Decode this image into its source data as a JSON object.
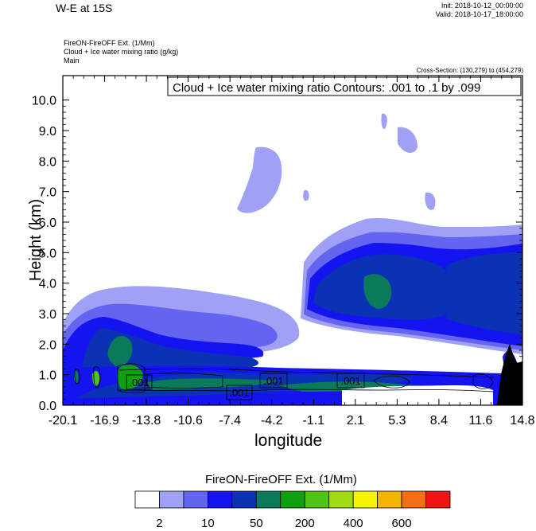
{
  "header": {
    "title": "W-E at 15S",
    "init": "Init: 2018-10-12_00:00:00",
    "valid": "Valid: 2018-10-17_18:00:00",
    "field1": "FireON-FireOFF Ext.   (1/Mm)",
    "field2": "Cloud + Ice water mixing ratio   (g/kg)",
    "field3": "Main",
    "cross_section": "Cross-Section: (130,279) to (454,279)"
  },
  "chart_data": {
    "type": "heatmap",
    "title": "W-E at 15S",
    "xlabel": "longitude",
    "ylabel": "Height (km)",
    "contour_label": "Cloud + Ice water mixing ratio Contours: .001 to .1 by .099",
    "x_ticks": [
      "-20.1",
      "-16.9",
      "-13.8",
      "-10.6",
      "-7.4",
      "-4.2",
      "-1.1",
      "2.1",
      "5.3",
      "8.4",
      "11.6",
      "14.8"
    ],
    "y_ticks": [
      "0.0",
      "1.0",
      "2.0",
      "3.0",
      "4.0",
      "5.0",
      "6.0",
      "7.0",
      "8.0",
      "9.0",
      "10.0"
    ],
    "xlim": [
      -20.1,
      14.8
    ],
    "ylim": [
      0,
      10.8
    ],
    "contour_labels": [
      ".001",
      ".001",
      ".001",
      ".001"
    ],
    "colorbar": {
      "title": "FireON-FireOFF Ext.  (1/Mm)",
      "colors": [
        "#ffffff",
        "#a0a0f5",
        "#6464f0",
        "#1414f0",
        "#0b32b4",
        "#0b7a5a",
        "#0fa00f",
        "#50c314",
        "#a0dc14",
        "#f5f500",
        "#f5b400",
        "#f56e14",
        "#f01414"
      ],
      "labels": [
        "2",
        "10",
        "50",
        "200",
        "400",
        "600"
      ]
    }
  }
}
